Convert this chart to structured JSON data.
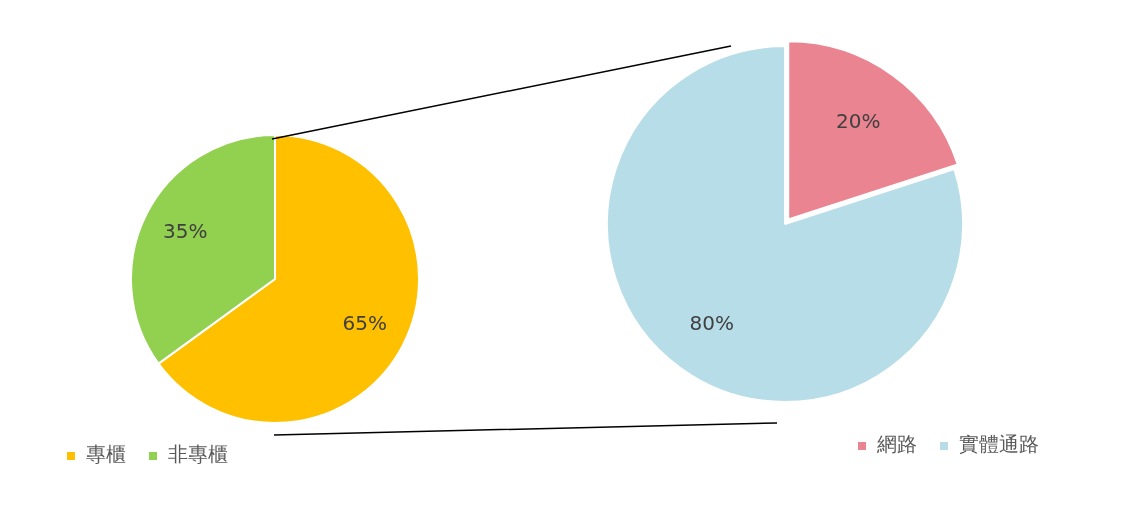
{
  "chart_data": [
    {
      "type": "pie",
      "categories": [
        "專櫃",
        "非專櫃"
      ],
      "values": [
        65,
        35
      ],
      "colors": [
        "#ffc000",
        "#92d050"
      ],
      "value_labels": [
        "65%",
        "35%"
      ],
      "legend": "bottom left"
    },
    {
      "type": "pie",
      "categories": [
        "網路",
        "實體通路"
      ],
      "values": [
        20,
        80
      ],
      "colors": [
        "#ea8490",
        "#b7dde8"
      ],
      "value_labels": [
        "20%",
        "80%"
      ],
      "legend": "bottom right"
    }
  ]
}
